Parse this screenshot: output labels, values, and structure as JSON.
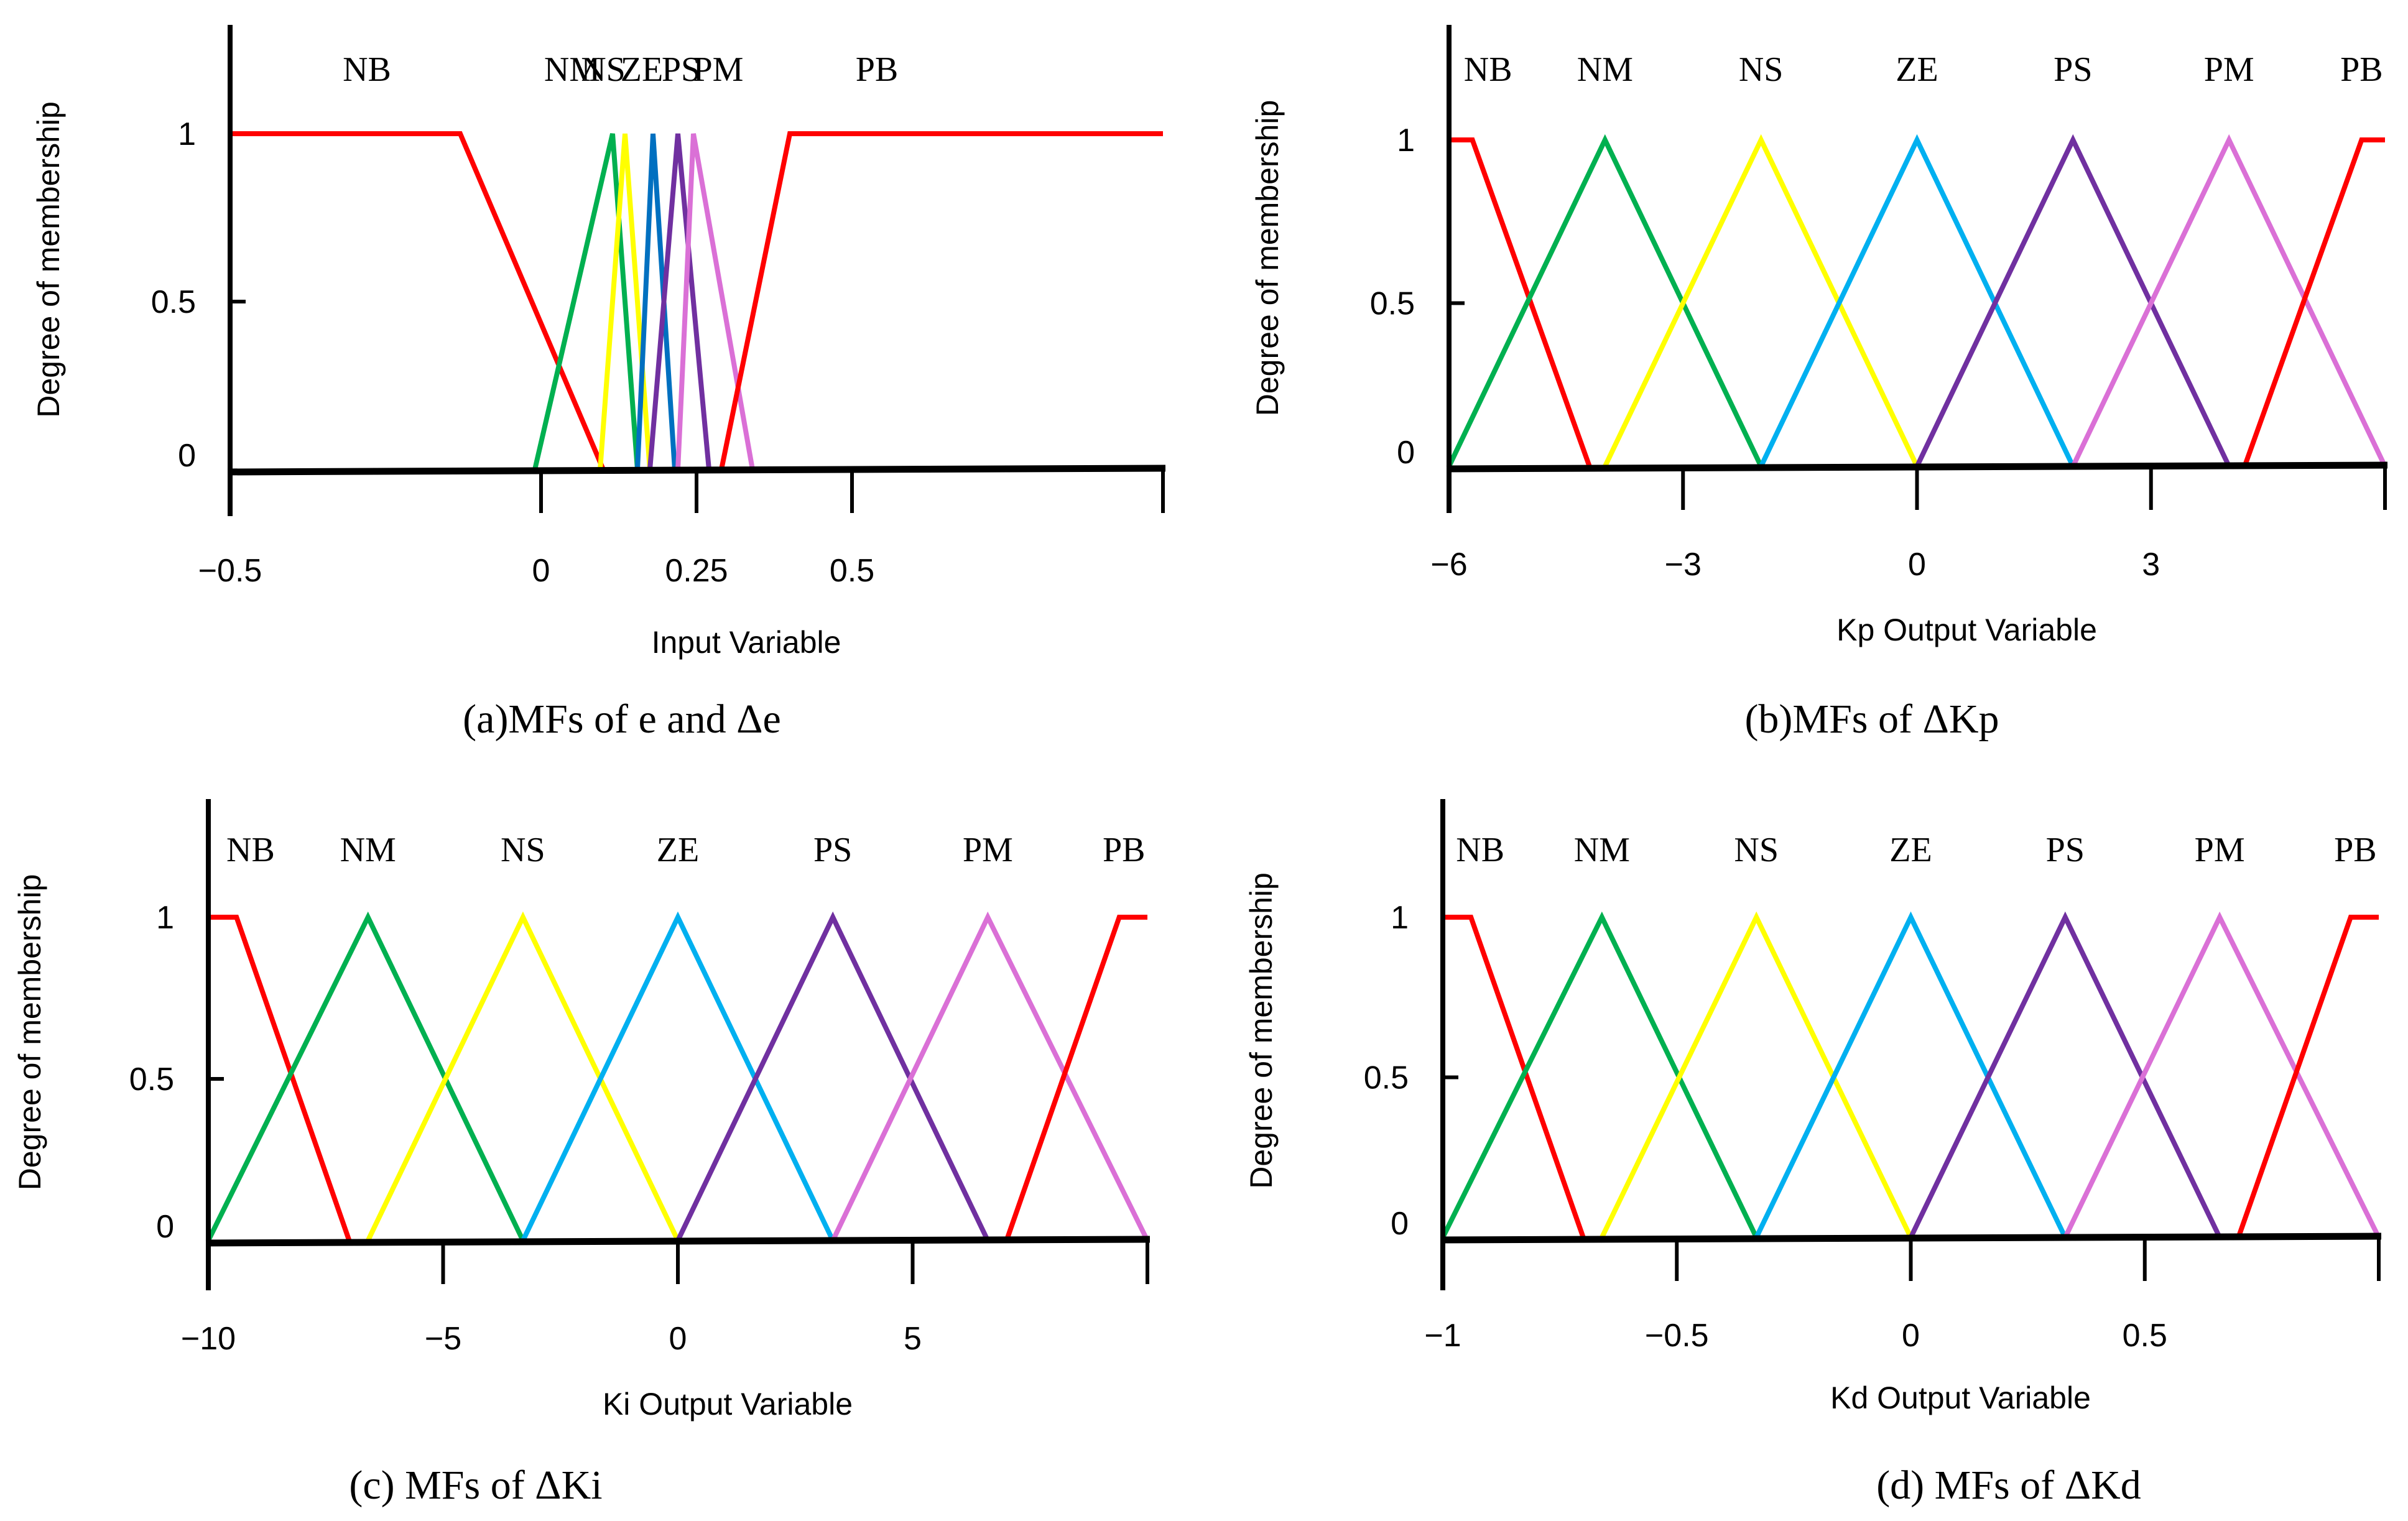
{
  "chart_data": [
    {
      "type": "line",
      "caption": "(a)MFs of e and Δe",
      "xlabel": "Input Variable",
      "ylabel": "Degree of membership",
      "x_ticks": [
        {
          "value": -0.5,
          "label": "−0.5"
        },
        {
          "value": 0,
          "label": "0"
        },
        {
          "value": 0.25,
          "label": "0.25"
        },
        {
          "value": 0.5,
          "label": "0.5"
        }
      ],
      "y_ticks": [
        {
          "value": 0,
          "label": "0"
        },
        {
          "value": 0.5,
          "label": "0.5"
        },
        {
          "value": 1,
          "label": "1"
        }
      ],
      "xlim": [
        -0.5,
        1.0
      ],
      "ylim": [
        0,
        1
      ],
      "mf_labels": [
        {
          "label": "NB",
          "x": -0.28
        },
        {
          "label": "NM",
          "x": 0.05
        },
        {
          "label": "NS",
          "x": 0.1
        },
        {
          "label": "ZE",
          "x": 0.162
        },
        {
          "label": "PS",
          "x": 0.225
        },
        {
          "label": "PM",
          "x": 0.285
        },
        {
          "label": "PB",
          "x": 0.54
        }
      ],
      "series": [
        {
          "name": "NB",
          "color": "#ff0000",
          "x": [
            -0.5,
            -0.13,
            0.1
          ],
          "y": [
            1,
            1,
            0
          ]
        },
        {
          "name": "NM",
          "color": "#00b050",
          "x": [
            -0.01,
            0.115,
            0.155
          ],
          "y": [
            0,
            1,
            0
          ]
        },
        {
          "name": "NS",
          "color": "#ffff00",
          "x": [
            0.095,
            0.135,
            0.175
          ],
          "y": [
            0,
            1,
            0
          ]
        },
        {
          "name": "ZE",
          "color": "#0070c0",
          "x": [
            0.155,
            0.18,
            0.215
          ],
          "y": [
            0,
            1,
            0
          ]
        },
        {
          "name": "PS",
          "color": "#7030a0",
          "x": [
            0.175,
            0.22,
            0.27
          ],
          "y": [
            0,
            1,
            0
          ]
        },
        {
          "name": "PM",
          "color": "#da70d6",
          "x": [
            0.22,
            0.245,
            0.34
          ],
          "y": [
            0,
            1,
            0
          ]
        },
        {
          "name": "PB",
          "color": "#ff0000",
          "x": [
            0.29,
            0.4,
            1.0
          ],
          "y": [
            0,
            1,
            1
          ]
        }
      ]
    },
    {
      "type": "line",
      "caption": "(b)MFs of ΔKp",
      "xlabel": "Kp Output Variable",
      "ylabel": "Degree of membership",
      "x_ticks": [
        {
          "value": -6,
          "label": "−6"
        },
        {
          "value": -3,
          "label": "−3"
        },
        {
          "value": 0,
          "label": "0"
        },
        {
          "value": 3,
          "label": "3"
        }
      ],
      "y_ticks": [
        {
          "value": 0,
          "label": "0"
        },
        {
          "value": 0.5,
          "label": "0.5"
        },
        {
          "value": 1,
          "label": "1"
        }
      ],
      "xlim": [
        -6,
        6
      ],
      "ylim": [
        0,
        1
      ],
      "mf_labels": [
        {
          "label": "NB",
          "x": -5.5
        },
        {
          "label": "NM",
          "x": -4
        },
        {
          "label": "NS",
          "x": -2
        },
        {
          "label": "ZE",
          "x": 0
        },
        {
          "label": "PS",
          "x": 2
        },
        {
          "label": "PM",
          "x": 4
        },
        {
          "label": "PB",
          "x": 5.7
        }
      ],
      "series": [
        {
          "name": "NB",
          "color": "#ff0000",
          "x": [
            -6,
            -5.7,
            -4.2
          ],
          "y": [
            1,
            1,
            0
          ]
        },
        {
          "name": "NM",
          "color": "#00b050",
          "x": [
            -6,
            -4,
            -2
          ],
          "y": [
            0,
            1,
            0
          ]
        },
        {
          "name": "NS",
          "color": "#ffff00",
          "x": [
            -4,
            -2,
            0
          ],
          "y": [
            0,
            1,
            0
          ]
        },
        {
          "name": "ZE",
          "color": "#00b0f0",
          "x": [
            -2,
            0,
            2
          ],
          "y": [
            0,
            1,
            0
          ]
        },
        {
          "name": "PS",
          "color": "#7030a0",
          "x": [
            0,
            2,
            4
          ],
          "y": [
            0,
            1,
            0
          ]
        },
        {
          "name": "PM",
          "color": "#da70d6",
          "x": [
            2,
            4,
            6
          ],
          "y": [
            0,
            1,
            0
          ]
        },
        {
          "name": "PB",
          "color": "#ff0000",
          "x": [
            4.2,
            5.7,
            6
          ],
          "y": [
            0,
            1,
            1
          ]
        }
      ]
    },
    {
      "type": "line",
      "caption": "(c) MFs of ΔKi",
      "xlabel": "Ki Output Variable",
      "ylabel": "Degree of membership",
      "x_ticks": [
        {
          "value": -10,
          "label": "−10"
        },
        {
          "value": -5,
          "label": "−5"
        },
        {
          "value": 0,
          "label": "0"
        },
        {
          "value": 5,
          "label": "5"
        }
      ],
      "y_ticks": [
        {
          "value": 0,
          "label": "0"
        },
        {
          "value": 0.5,
          "label": "0.5"
        },
        {
          "value": 1,
          "label": "1"
        }
      ],
      "xlim": [
        -10,
        10
      ],
      "ylim": [
        0,
        1
      ],
      "mf_labels": [
        {
          "label": "NB",
          "x": -9.1
        },
        {
          "label": "NM",
          "x": -6.6
        },
        {
          "label": "NS",
          "x": -3.3
        },
        {
          "label": "ZE",
          "x": 0
        },
        {
          "label": "PS",
          "x": 3.3
        },
        {
          "label": "PM",
          "x": 6.6
        },
        {
          "label": "PB",
          "x": 9.5
        }
      ],
      "series": [
        {
          "name": "NB",
          "color": "#ff0000",
          "x": [
            -10,
            -9.4,
            -7
          ],
          "y": [
            1,
            1,
            0
          ]
        },
        {
          "name": "NM",
          "color": "#00b050",
          "x": [
            -10,
            -6.6,
            -3.3
          ],
          "y": [
            0,
            1,
            0
          ]
        },
        {
          "name": "NS",
          "color": "#ffff00",
          "x": [
            -6.6,
            -3.3,
            0
          ],
          "y": [
            0,
            1,
            0
          ]
        },
        {
          "name": "ZE",
          "color": "#00b0f0",
          "x": [
            -3.3,
            0,
            3.3
          ],
          "y": [
            0,
            1,
            0
          ]
        },
        {
          "name": "PS",
          "color": "#7030a0",
          "x": [
            0,
            3.3,
            6.6
          ],
          "y": [
            0,
            1,
            0
          ]
        },
        {
          "name": "PM",
          "color": "#da70d6",
          "x": [
            3.3,
            6.6,
            10
          ],
          "y": [
            0,
            1,
            0
          ]
        },
        {
          "name": "PB",
          "color": "#ff0000",
          "x": [
            7,
            9.4,
            10
          ],
          "y": [
            0,
            1,
            1
          ]
        }
      ]
    },
    {
      "type": "line",
      "caption": "(d) MFs of ΔKd",
      "xlabel": "Kd Output Variable",
      "ylabel": "Degree of membership",
      "x_ticks": [
        {
          "value": -1,
          "label": "−1"
        },
        {
          "value": -0.5,
          "label": "−0.5"
        },
        {
          "value": 0,
          "label": "0"
        },
        {
          "value": 0.5,
          "label": "0.5"
        }
      ],
      "y_ticks": [
        {
          "value": 0,
          "label": "0"
        },
        {
          "value": 0.5,
          "label": "0.5"
        },
        {
          "value": 1,
          "label": "1"
        }
      ],
      "xlim": [
        -1,
        1
      ],
      "ylim": [
        0,
        1
      ],
      "mf_labels": [
        {
          "label": "NB",
          "x": -0.92
        },
        {
          "label": "NM",
          "x": -0.66
        },
        {
          "label": "NS",
          "x": -0.33
        },
        {
          "label": "ZE",
          "x": 0
        },
        {
          "label": "PS",
          "x": 0.33
        },
        {
          "label": "PM",
          "x": 0.66
        },
        {
          "label": "PB",
          "x": 0.95
        }
      ],
      "series": [
        {
          "name": "NB",
          "color": "#ff0000",
          "x": [
            -1,
            -0.94,
            -0.7
          ],
          "y": [
            1,
            1,
            0
          ]
        },
        {
          "name": "NM",
          "color": "#00b050",
          "x": [
            -1,
            -0.66,
            -0.33
          ],
          "y": [
            0,
            1,
            0
          ]
        },
        {
          "name": "NS",
          "color": "#ffff00",
          "x": [
            -0.66,
            -0.33,
            0
          ],
          "y": [
            0,
            1,
            0
          ]
        },
        {
          "name": "ZE",
          "color": "#00b0f0",
          "x": [
            -0.33,
            0,
            0.33
          ],
          "y": [
            0,
            1,
            0
          ]
        },
        {
          "name": "PS",
          "color": "#7030a0",
          "x": [
            0,
            0.33,
            0.66
          ],
          "y": [
            0,
            1,
            0
          ]
        },
        {
          "name": "PM",
          "color": "#da70d6",
          "x": [
            0.33,
            0.66,
            1
          ],
          "y": [
            0,
            1,
            0
          ]
        },
        {
          "name": "PB",
          "color": "#ff0000",
          "x": [
            0.7,
            0.94,
            1
          ],
          "y": [
            0,
            1,
            1
          ]
        }
      ]
    }
  ]
}
